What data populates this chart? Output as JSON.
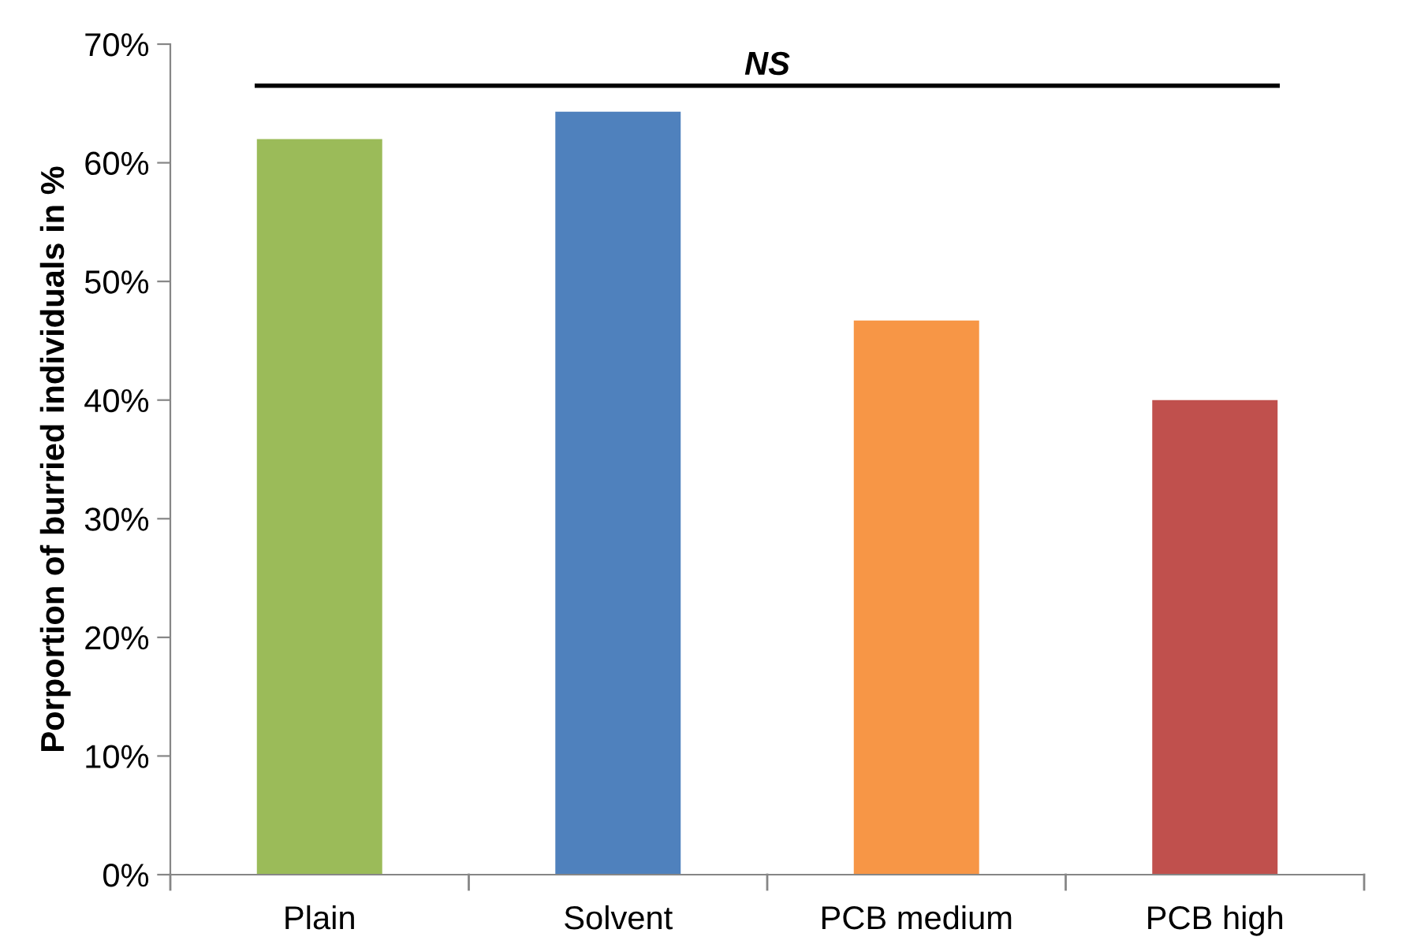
{
  "chart_data": {
    "type": "bar",
    "ylabel": "Porportion of burried individuals in %",
    "categories": [
      "Plain",
      "Solvent",
      "PCB medium",
      "PCB high"
    ],
    "values": [
      62.0,
      64.3,
      46.7,
      40.0
    ],
    "colors": [
      "#9bbb59",
      "#4f81bd",
      "#f79646",
      "#c0504d"
    ],
    "ylim": [
      0,
      70
    ],
    "yticks": [
      {
        "value": 0,
        "label": "0%"
      },
      {
        "value": 10,
        "label": "10%"
      },
      {
        "value": 20,
        "label": "20%"
      },
      {
        "value": 30,
        "label": "30%"
      },
      {
        "value": 40,
        "label": "40%"
      },
      {
        "value": 50,
        "label": "50%"
      },
      {
        "value": 60,
        "label": "60%"
      },
      {
        "value": 70,
        "label": "70%"
      }
    ],
    "ref_lines": [
      {
        "axis": "y",
        "value": 66.5,
        "label": "NS",
        "color": "#000000"
      }
    ],
    "grid": false,
    "legend": false
  }
}
